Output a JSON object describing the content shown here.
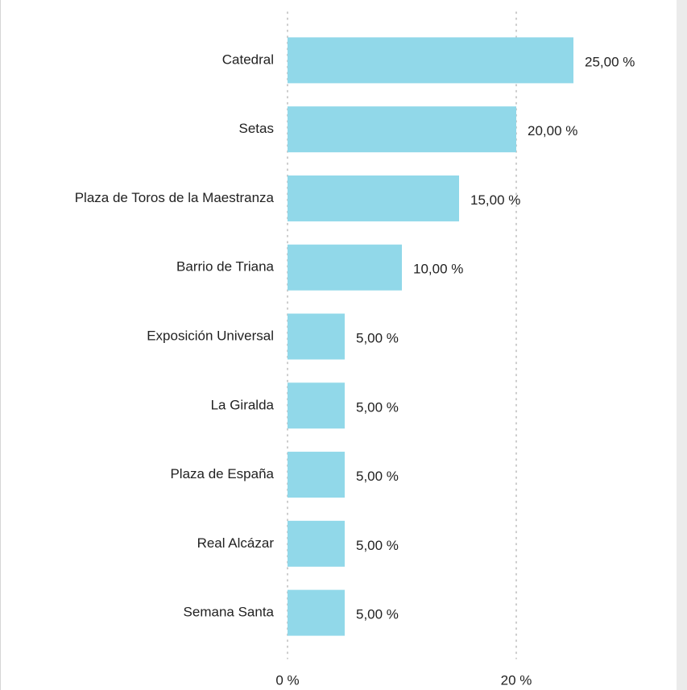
{
  "chart_data": {
    "type": "bar",
    "orientation": "horizontal",
    "categories": [
      "Catedral",
      "Setas",
      "Plaza de Toros de la Maestranza",
      "Barrio de Triana",
      "Exposición Universal",
      "La Giralda",
      "Plaza de España",
      "Real Alcázar",
      "Semana Santa"
    ],
    "values": [
      25,
      20,
      15,
      10,
      5,
      5,
      5,
      5,
      5
    ],
    "value_labels": [
      "25,00 %",
      "20,00 %",
      "15,00 %",
      "10,00 %",
      "5,00 %",
      "5,00 %",
      "5,00 %",
      "5,00 %",
      "5,00 %"
    ],
    "color": "#91d8e9",
    "xlim": [
      0,
      30
    ],
    "xticks": [
      {
        "value": 0,
        "label": "0 %"
      },
      {
        "value": 20,
        "label": "20 %"
      }
    ],
    "grid": true
  }
}
